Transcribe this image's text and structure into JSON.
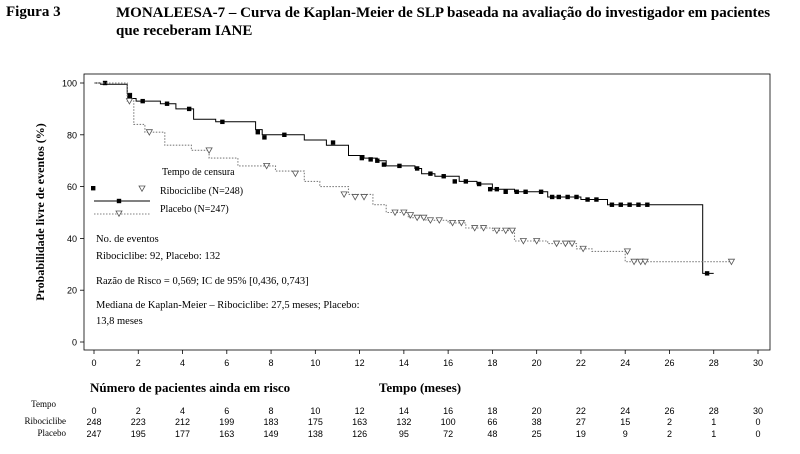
{
  "figure": {
    "label": "Figura 3",
    "title": "MONALEESA-7 – Curva de Kaplan-Meier de SLP baseada na avaliação do investigador em pacientes que receberam IANE"
  },
  "chart_data": {
    "type": "line",
    "xlabel": "Tempo (meses)",
    "ylabel": "Probabilidade livre de eventos (%)",
    "xlim": [
      0,
      30
    ],
    "ylim": [
      0,
      100
    ],
    "x_ticks": [
      0,
      2,
      4,
      6,
      8,
      10,
      12,
      14,
      16,
      18,
      20,
      22,
      24,
      26,
      28,
      30
    ],
    "y_ticks": [
      0,
      20,
      40,
      60,
      80,
      100
    ],
    "grid": false,
    "legend": {
      "header": "Tempo de censura",
      "position": "left-middle",
      "entries": [
        "Ribociclibe (N=248)",
        "Placebo (N=247)"
      ]
    },
    "series": [
      {
        "name": "Ribociclibe (N=248)",
        "color": "#000000",
        "style": "solid",
        "censor_marker": "filled-square",
        "points": [
          [
            0,
            100
          ],
          [
            0.3,
            100
          ],
          [
            0.3,
            99.5
          ],
          [
            1.5,
            99.5
          ],
          [
            1.5,
            96
          ],
          [
            1.7,
            96
          ],
          [
            1.7,
            94
          ],
          [
            1.9,
            94
          ],
          [
            1.9,
            93
          ],
          [
            3,
            93
          ],
          [
            3,
            92
          ],
          [
            3.7,
            92
          ],
          [
            3.7,
            90
          ],
          [
            4.5,
            90
          ],
          [
            4.5,
            86
          ],
          [
            5.5,
            86
          ],
          [
            5.5,
            85
          ],
          [
            7.3,
            85
          ],
          [
            7.3,
            82
          ],
          [
            7.6,
            82
          ],
          [
            7.6,
            80
          ],
          [
            9.5,
            80
          ],
          [
            9.5,
            78
          ],
          [
            10.5,
            78
          ],
          [
            10.5,
            76
          ],
          [
            11.5,
            76
          ],
          [
            11.5,
            72
          ],
          [
            12.2,
            72
          ],
          [
            12.2,
            71
          ],
          [
            12.8,
            71
          ],
          [
            12.8,
            70
          ],
          [
            13.2,
            70
          ],
          [
            13.2,
            68
          ],
          [
            14.5,
            68
          ],
          [
            14.5,
            67
          ],
          [
            14.8,
            67
          ],
          [
            14.8,
            65
          ],
          [
            15.4,
            65
          ],
          [
            15.4,
            64
          ],
          [
            16.5,
            64
          ],
          [
            16.5,
            62
          ],
          [
            17.3,
            62
          ],
          [
            17.3,
            61
          ],
          [
            18,
            61
          ],
          [
            18,
            59
          ],
          [
            19,
            59
          ],
          [
            19,
            58
          ],
          [
            20.5,
            58
          ],
          [
            20.5,
            56
          ],
          [
            22,
            56
          ],
          [
            22,
            55
          ],
          [
            23.2,
            55
          ],
          [
            23.2,
            53
          ],
          [
            27.5,
            53
          ],
          [
            27.5,
            26.5
          ],
          [
            28,
            26.5
          ]
        ],
        "censored": [
          [
            0.5,
            100
          ],
          [
            1.6,
            95
          ],
          [
            2.2,
            93
          ],
          [
            3.3,
            92
          ],
          [
            4.3,
            90
          ],
          [
            5.8,
            85
          ],
          [
            7.4,
            81
          ],
          [
            7.7,
            79
          ],
          [
            8.6,
            80
          ],
          [
            10.8,
            77
          ],
          [
            12.1,
            71
          ],
          [
            12.5,
            70.5
          ],
          [
            12.8,
            70
          ],
          [
            13.1,
            68.5
          ],
          [
            13.8,
            68
          ],
          [
            14.6,
            67
          ],
          [
            15.2,
            65
          ],
          [
            15.8,
            64
          ],
          [
            16.3,
            62
          ],
          [
            16.8,
            62
          ],
          [
            17.4,
            61
          ],
          [
            17.9,
            59
          ],
          [
            18.2,
            59
          ],
          [
            18.6,
            58
          ],
          [
            19.1,
            58
          ],
          [
            19.5,
            58
          ],
          [
            20.2,
            58
          ],
          [
            20.7,
            56
          ],
          [
            21,
            56
          ],
          [
            21.4,
            56
          ],
          [
            21.8,
            56
          ],
          [
            22.3,
            55
          ],
          [
            22.7,
            55
          ],
          [
            23.4,
            53
          ],
          [
            23.8,
            53
          ],
          [
            24.2,
            53
          ],
          [
            24.6,
            53
          ],
          [
            25,
            53
          ],
          [
            27.7,
            26.5
          ]
        ]
      },
      {
        "name": "Placebo (N=247)",
        "color": "#808080",
        "style": "dotted",
        "censor_marker": "open-triangle",
        "points": [
          [
            0,
            100
          ],
          [
            1.5,
            100
          ],
          [
            1.5,
            93
          ],
          [
            1.8,
            93
          ],
          [
            1.8,
            84
          ],
          [
            2.3,
            84
          ],
          [
            2.3,
            81
          ],
          [
            3.2,
            81
          ],
          [
            3.2,
            76
          ],
          [
            4.4,
            76
          ],
          [
            4.4,
            74
          ],
          [
            5.2,
            74
          ],
          [
            5.2,
            71
          ],
          [
            6.5,
            71
          ],
          [
            6.5,
            68
          ],
          [
            8.2,
            68
          ],
          [
            8.2,
            66
          ],
          [
            9.5,
            66
          ],
          [
            9.5,
            62
          ],
          [
            10.2,
            62
          ],
          [
            10.2,
            60
          ],
          [
            11.5,
            60
          ],
          [
            11.5,
            57
          ],
          [
            12.6,
            57
          ],
          [
            12.6,
            53
          ],
          [
            13.2,
            53
          ],
          [
            13.2,
            50
          ],
          [
            14.2,
            50
          ],
          [
            14.2,
            48
          ],
          [
            15,
            48
          ],
          [
            15,
            47
          ],
          [
            16,
            47
          ],
          [
            16,
            46
          ],
          [
            16.8,
            46
          ],
          [
            16.8,
            44
          ],
          [
            18,
            44
          ],
          [
            18,
            43
          ],
          [
            19,
            43
          ],
          [
            19,
            39
          ],
          [
            20.5,
            39
          ],
          [
            20.5,
            38
          ],
          [
            21.8,
            38
          ],
          [
            21.8,
            36
          ],
          [
            22.5,
            36
          ],
          [
            22.5,
            35
          ],
          [
            24,
            35
          ],
          [
            24,
            31
          ],
          [
            27.5,
            31
          ],
          [
            28.8,
            31
          ]
        ],
        "censored": [
          [
            1.6,
            93
          ],
          [
            2.5,
            81
          ],
          [
            5.2,
            74
          ],
          [
            7.8,
            68
          ],
          [
            9.1,
            65
          ],
          [
            11.3,
            57
          ],
          [
            11.8,
            56
          ],
          [
            12.2,
            56
          ],
          [
            13.6,
            50
          ],
          [
            14,
            50
          ],
          [
            14.3,
            49
          ],
          [
            14.6,
            48
          ],
          [
            14.9,
            48
          ],
          [
            15.2,
            47
          ],
          [
            15.6,
            47
          ],
          [
            16.2,
            46
          ],
          [
            16.6,
            46
          ],
          [
            17.2,
            44
          ],
          [
            17.6,
            44
          ],
          [
            18.2,
            43
          ],
          [
            18.6,
            43
          ],
          [
            18.9,
            43
          ],
          [
            19.4,
            39
          ],
          [
            20,
            39
          ],
          [
            20.9,
            38
          ],
          [
            21.3,
            38
          ],
          [
            21.6,
            38
          ],
          [
            22.1,
            36
          ],
          [
            24.1,
            35
          ],
          [
            24.4,
            31
          ],
          [
            24.7,
            31
          ],
          [
            24.9,
            31
          ],
          [
            28.8,
            31
          ]
        ]
      }
    ],
    "annotations": [
      "No. de eventos",
      "Ribociclibe: 92, Placebo: 132",
      "Razão de Risco = 0,569; IC de 95% [0,436, 0,743]",
      "Mediana de Kaplan-Meier – Ribociclibe: 27,5 meses; Placebo:",
      "13,8 meses"
    ],
    "risk_table": {
      "heading": "Número de pacientes ainda em risco",
      "time_label": "Tempo",
      "times": [
        0,
        2,
        4,
        6,
        8,
        10,
        12,
        14,
        16,
        18,
        20,
        22,
        24,
        26,
        28,
        30
      ],
      "rows": [
        {
          "label": "Ribociclibe",
          "values": [
            248,
            223,
            212,
            199,
            183,
            175,
            163,
            132,
            100,
            66,
            38,
            27,
            15,
            2,
            1,
            0
          ]
        },
        {
          "label": "Placebo",
          "values": [
            247,
            195,
            177,
            163,
            149,
            138,
            126,
            95,
            72,
            48,
            25,
            19,
            9,
            2,
            1,
            0
          ]
        }
      ]
    }
  }
}
